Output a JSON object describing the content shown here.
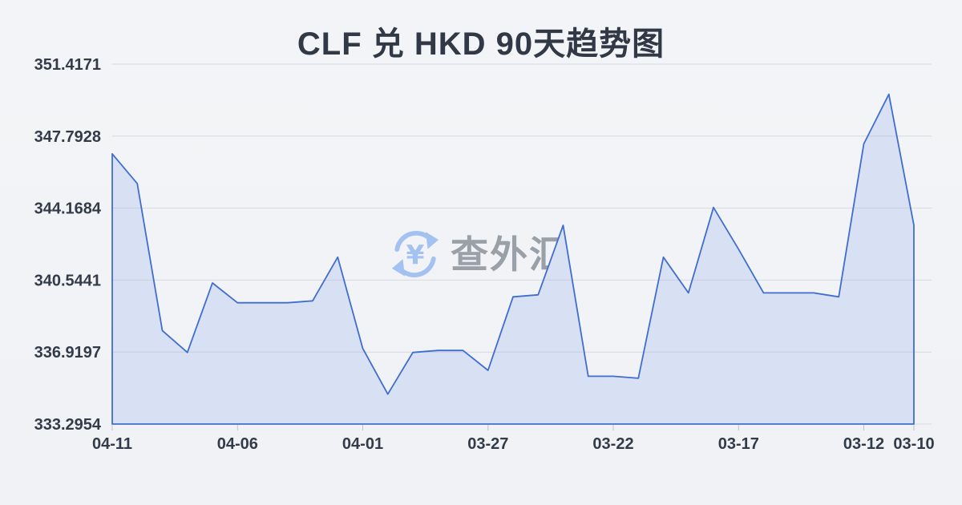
{
  "title": "CLF 兑 HKD 90天趋势图",
  "watermark": {
    "brand_text": "查外汇",
    "icon": "yen-exchange-icon",
    "icon_glyph": "¥"
  },
  "colors": {
    "background": "#f1f3f6",
    "line": "#3f6dd0",
    "area_fill": "#d8e0f4",
    "grid": "rgba(163,171,184,0.35)",
    "tick": "rgba(150,158,170,0.55)",
    "axis_text": "#333b49",
    "title_text": "#313947",
    "watermark_text": "#9aa0a8",
    "watermark_icon": "#a3c1f1"
  },
  "chart_data": {
    "type": "area",
    "title": "CLF 兑 HKD 90天趋势图",
    "xlabel": "",
    "ylabel": "",
    "legend": "none",
    "grid": "horizontal",
    "x": [
      "04-11",
      "04-10",
      "04-09",
      "04-08",
      "04-07",
      "04-06",
      "04-05",
      "04-04",
      "04-03",
      "04-02",
      "04-01",
      "03-31",
      "03-30",
      "03-29",
      "03-28",
      "03-27",
      "03-26",
      "03-25",
      "03-24",
      "03-23",
      "03-22",
      "03-21",
      "03-20",
      "03-19",
      "03-18",
      "03-17",
      "03-16",
      "03-15",
      "03-14",
      "03-13",
      "03-12",
      "03-11",
      "03-10"
    ],
    "values": [
      346.9,
      345.4,
      338.0,
      336.9,
      340.4,
      339.4,
      339.4,
      339.4,
      339.5,
      341.7,
      337.1,
      334.8,
      336.9,
      337.0,
      337.0,
      336.0,
      339.7,
      339.8,
      343.3,
      335.7,
      335.7,
      335.6,
      341.7,
      339.9,
      344.2,
      342.1,
      339.9,
      339.9,
      339.9,
      339.7,
      347.4,
      349.9,
      343.3
    ],
    "x_tick_indices": [
      0,
      5,
      10,
      15,
      20,
      25,
      30,
      32
    ],
    "x_tick_labels": [
      "04-11",
      "04-06",
      "04-01",
      "03-27",
      "03-22",
      "03-17",
      "03-12",
      "03-10"
    ],
    "y_tick_labels": [
      "351.4171",
      "347.7928",
      "344.1684",
      "340.5441",
      "336.9197",
      "333.2954"
    ],
    "ylim": [
      333.2954,
      351.4171
    ]
  }
}
